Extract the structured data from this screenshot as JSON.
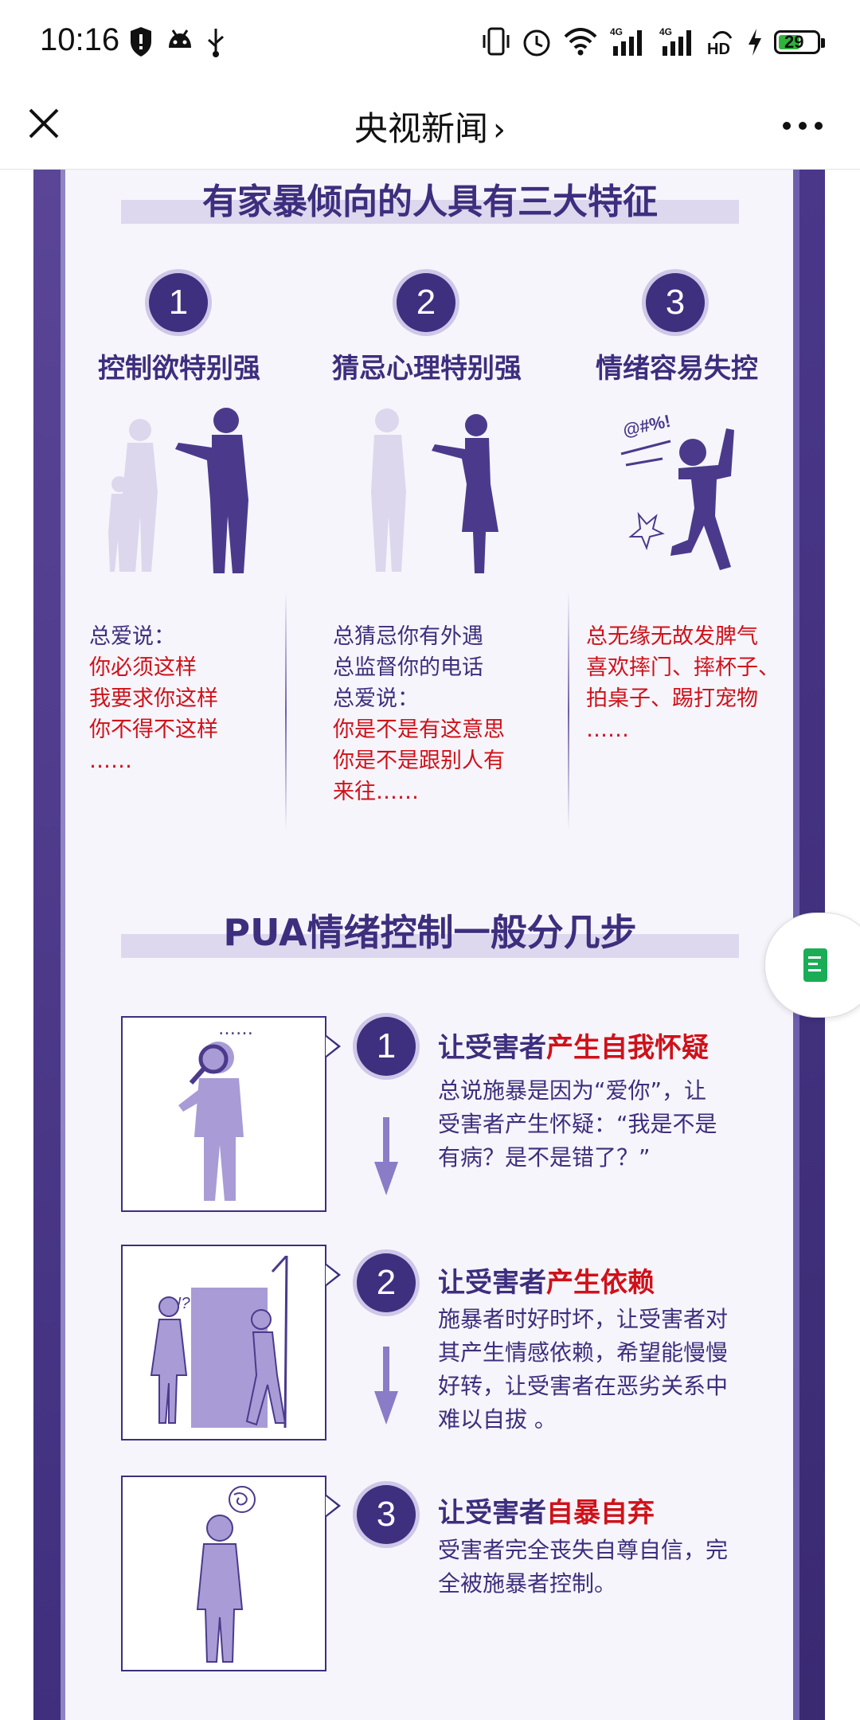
{
  "status_bar": {
    "time": "10:16",
    "battery": "29"
  },
  "nav": {
    "title": "央视新闻",
    "chevron": "›"
  },
  "section1": {
    "title": "有家暴倾向的人具有三大特征",
    "traits": [
      {
        "num": "1",
        "head": "控制欲特别强",
        "lines": [
          {
            "text": "总爱说：",
            "color": "purple"
          },
          {
            "text": "你必须这样",
            "color": "red"
          },
          {
            "text": "我要求你这样",
            "color": "red"
          },
          {
            "text": "你不得不这样",
            "color": "red"
          },
          {
            "text": "……",
            "color": "red"
          }
        ]
      },
      {
        "num": "2",
        "head": "猜忌心理特别强",
        "lines": [
          {
            "text": "总猜忌你有外遇",
            "color": "purple"
          },
          {
            "text": "总监督你的电话",
            "color": "purple"
          },
          {
            "text": "总爱说：",
            "color": "purple"
          },
          {
            "text": "你是不是有这意思",
            "color": "red"
          },
          {
            "text": "你是不是跟别人有",
            "color": "red"
          },
          {
            "text": "来往……",
            "color": "red"
          }
        ]
      },
      {
        "num": "3",
        "head": "情绪容易失控",
        "lines": [
          {
            "text": "总无缘无故发脾气",
            "color": "red"
          },
          {
            "text": "喜欢摔门、摔杯子、",
            "color": "red"
          },
          {
            "text": "拍桌子、踢打宠物",
            "color": "red"
          },
          {
            "text": "……",
            "color": "red"
          }
        ]
      }
    ],
    "swear_symbols": "@#%!"
  },
  "section2": {
    "title": "PUA情绪控制一般分几步",
    "steps": [
      {
        "num": "1",
        "head_prefix": "让受害者",
        "head_highlight": "产生自我怀疑",
        "lines": [
          "总说施暴是因为“爱你”，让",
          "受害者产生怀疑：“我是不是",
          "有病？是不是错了？”"
        ],
        "box_label": "……"
      },
      {
        "num": "2",
        "head_prefix": "让受害者",
        "head_highlight": "产生依赖",
        "lines": [
          "施暴者时好时坏，让受害者对",
          "其产生情感依赖，希望能慢慢",
          "好转，让受害者在恶劣关系中",
          "难以自拔 。"
        ],
        "box_label": "!?"
      },
      {
        "num": "3",
        "head_prefix": "让受害者",
        "head_highlight": "自暴自弃",
        "lines": [
          "受害者完全丧失自尊自信，完",
          "全被施暴者控制。"
        ],
        "box_label": ""
      }
    ]
  },
  "colors": {
    "brand_purple": "#3e2e7e",
    "highlight_red": "#d0111a",
    "light_purple": "#ddd8ee"
  }
}
